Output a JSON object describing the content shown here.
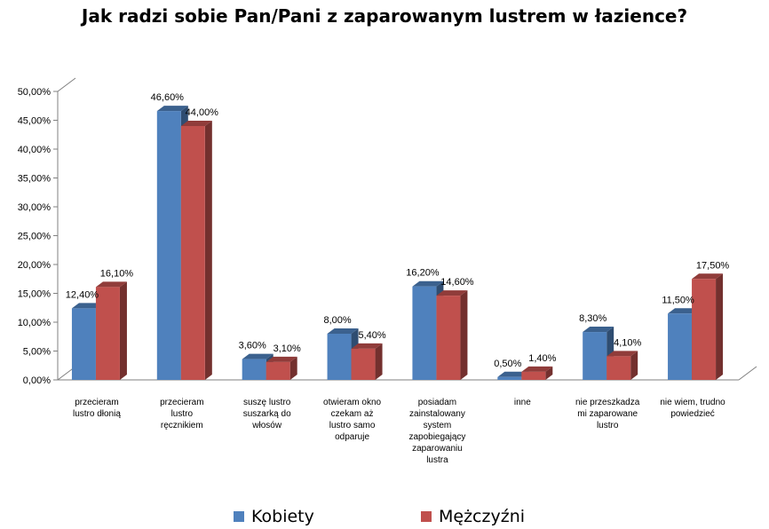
{
  "chart_data": {
    "type": "bar",
    "title": "Jak radzi sobie Pan/Pani z zaparowanym lustrem w łazience?",
    "categories": [
      [
        "przecieram",
        "lustro dłonią"
      ],
      [
        "przecieram",
        "lustro",
        "ręcznikiem"
      ],
      [
        "suszę lustro",
        "suszarką do",
        "włosów"
      ],
      [
        "otwieram okno",
        "czekam aż",
        "lustro samo",
        "odparuje"
      ],
      [
        "posiadam",
        "zainstalowany",
        "system",
        "zapobiegający",
        "zaparowaniu",
        "lustra"
      ],
      [
        "inne"
      ],
      [
        "nie przeszkadza",
        "mi zaparowane",
        "lustro"
      ],
      [
        "nie wiem, trudno",
        "powiedzieć"
      ]
    ],
    "series": [
      {
        "name": "Kobiety",
        "color": "#4F81BD",
        "values": [
          12.4,
          46.6,
          3.6,
          8.0,
          16.2,
          0.5,
          8.3,
          11.5
        ],
        "labels": [
          "12,40%",
          "46,60%",
          "3,60%",
          "8,00%",
          "16,20%",
          "0,50%",
          "8,30%",
          "11,50%"
        ]
      },
      {
        "name": "Mężczyźni",
        "color": "#C0504D",
        "values": [
          16.1,
          44.0,
          3.1,
          5.4,
          14.6,
          1.4,
          4.1,
          17.5
        ],
        "labels": [
          "16,10%",
          "44,00%",
          "3,10%",
          "5,40%",
          "14,60%",
          "1,40%",
          "4,10%",
          "17,50%"
        ]
      }
    ],
    "yticks": [
      "0,00%",
      "5,00%",
      "10,00%",
      "15,00%",
      "20,00%",
      "25,00%",
      "30,00%",
      "35,00%",
      "40,00%",
      "45,00%",
      "50,00%"
    ],
    "ylim": [
      0,
      50
    ],
    "legend_position": "bottom",
    "grid": false
  }
}
